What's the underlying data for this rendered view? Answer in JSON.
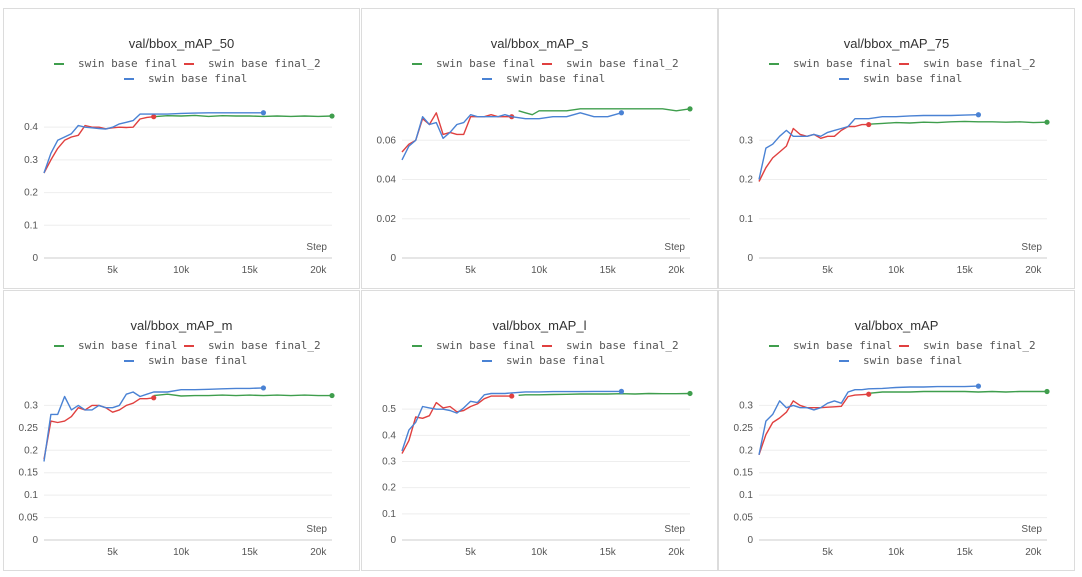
{
  "legend": [
    {
      "name": "swin base final",
      "color": "#3f9e4d"
    },
    {
      "name": "swin base final_2",
      "color": "#e0403f"
    },
    {
      "name": "swin base final",
      "color": "#4a82d4"
    }
  ],
  "chart_data": [
    {
      "type": "line",
      "title": "val/bbox_mAP_50",
      "xlabel": "Step",
      "xlim": [
        0,
        21000
      ],
      "xticks": [
        5000,
        10000,
        15000,
        20000
      ],
      "xticklabels": [
        "5k",
        "10k",
        "15k",
        "20k"
      ],
      "ylim": [
        0,
        0.48
      ],
      "yticks": [
        0,
        0.1,
        0.2,
        0.3,
        0.4
      ],
      "yticklabels": [
        "0",
        "0.1",
        "0.2",
        "0.3",
        "0.4"
      ],
      "series": [
        {
          "name": "swin base final",
          "color": "#3f9e4d",
          "x": [
            8000,
            9000,
            10000,
            11000,
            12000,
            13000,
            14000,
            15000,
            16000,
            17000,
            18000,
            19000,
            20000,
            21000
          ],
          "y": [
            0.432,
            0.435,
            0.434,
            0.436,
            0.433,
            0.435,
            0.434,
            0.434,
            0.433,
            0.434,
            0.433,
            0.434,
            0.433,
            0.434
          ]
        },
        {
          "name": "swin base final_2",
          "color": "#e0403f",
          "x": [
            0,
            500,
            1000,
            1500,
            2000,
            2500,
            3000,
            3500,
            4000,
            4500,
            5000,
            5500,
            6000,
            6500,
            7000,
            7500,
            8000
          ],
          "y": [
            0.26,
            0.3,
            0.335,
            0.36,
            0.37,
            0.375,
            0.405,
            0.4,
            0.4,
            0.395,
            0.398,
            0.4,
            0.399,
            0.4,
            0.425,
            0.43,
            0.432
          ]
        },
        {
          "name": "swin base final",
          "color": "#4a82d4",
          "x": [
            0,
            500,
            1000,
            1500,
            2000,
            2500,
            3000,
            3500,
            4000,
            4500,
            5000,
            5500,
            6000,
            6500,
            7000,
            7500,
            8000,
            9000,
            10000,
            11000,
            12000,
            13000,
            14000,
            15000,
            16000
          ],
          "y": [
            0.26,
            0.32,
            0.36,
            0.37,
            0.38,
            0.405,
            0.4,
            0.398,
            0.396,
            0.394,
            0.4,
            0.41,
            0.415,
            0.42,
            0.44,
            0.44,
            0.44,
            0.44,
            0.442,
            0.443,
            0.444,
            0.444,
            0.444,
            0.444,
            0.444
          ]
        }
      ]
    },
    {
      "type": "line",
      "title": "val/bbox_mAP_s",
      "xlabel": "Step",
      "xlim": [
        0,
        21000
      ],
      "xticks": [
        5000,
        10000,
        15000,
        20000
      ],
      "xticklabels": [
        "5k",
        "10k",
        "15k",
        "20k"
      ],
      "ylim": [
        0,
        0.08
      ],
      "yticks": [
        0,
        0.02,
        0.04,
        0.06
      ],
      "yticklabels": [
        "0",
        "0.02",
        "0.04",
        "0.06"
      ],
      "series": [
        {
          "name": "swin base final",
          "color": "#3f9e4d",
          "x": [
            8500,
            9000,
            9500,
            10000,
            11000,
            12000,
            13000,
            14000,
            15000,
            16000,
            17000,
            18000,
            19000,
            20000,
            21000
          ],
          "y": [
            0.075,
            0.074,
            0.073,
            0.075,
            0.075,
            0.075,
            0.076,
            0.076,
            0.076,
            0.076,
            0.076,
            0.076,
            0.076,
            0.075,
            0.076
          ]
        },
        {
          "name": "swin base final_2",
          "color": "#e0403f",
          "x": [
            0,
            500,
            1000,
            1500,
            2000,
            2500,
            3000,
            3500,
            4000,
            4500,
            5000,
            5500,
            6000,
            6500,
            7000,
            7500,
            8000
          ],
          "y": [
            0.054,
            0.058,
            0.06,
            0.071,
            0.068,
            0.074,
            0.063,
            0.064,
            0.063,
            0.063,
            0.072,
            0.072,
            0.072,
            0.073,
            0.072,
            0.072,
            0.072
          ]
        },
        {
          "name": "swin base final",
          "color": "#4a82d4",
          "x": [
            0,
            500,
            1000,
            1500,
            2000,
            2500,
            3000,
            3500,
            4000,
            4500,
            5000,
            5500,
            6000,
            6500,
            7000,
            7500,
            8000,
            9000,
            10000,
            11000,
            12000,
            13000,
            14000,
            15000,
            16000
          ],
          "y": [
            0.05,
            0.057,
            0.06,
            0.072,
            0.068,
            0.069,
            0.061,
            0.064,
            0.068,
            0.069,
            0.073,
            0.072,
            0.072,
            0.072,
            0.072,
            0.073,
            0.072,
            0.071,
            0.071,
            0.072,
            0.072,
            0.074,
            0.072,
            0.072,
            0.074
          ]
        }
      ]
    },
    {
      "type": "line",
      "title": "val/bbox_mAP_75",
      "xlabel": "Step",
      "xlim": [
        0,
        21000
      ],
      "xticks": [
        5000,
        10000,
        15000,
        20000
      ],
      "xticklabels": [
        "5k",
        "10k",
        "15k",
        "20k"
      ],
      "ylim": [
        0,
        0.4
      ],
      "yticks": [
        0,
        0.1,
        0.2,
        0.3
      ],
      "yticklabels": [
        "0",
        "0.1",
        "0.2",
        "0.3"
      ],
      "series": [
        {
          "name": "swin base final",
          "color": "#3f9e4d",
          "x": [
            8000,
            9000,
            10000,
            11000,
            12000,
            13000,
            14000,
            15000,
            16000,
            17000,
            18000,
            19000,
            20000,
            21000
          ],
          "y": [
            0.341,
            0.343,
            0.345,
            0.344,
            0.346,
            0.345,
            0.347,
            0.348,
            0.347,
            0.347,
            0.346,
            0.347,
            0.345,
            0.346
          ]
        },
        {
          "name": "swin base final_2",
          "color": "#e0403f",
          "x": [
            0,
            500,
            1000,
            1500,
            2000,
            2500,
            3000,
            3500,
            4000,
            4500,
            5000,
            5500,
            6000,
            6500,
            7000,
            7500,
            8000
          ],
          "y": [
            0.195,
            0.23,
            0.255,
            0.27,
            0.285,
            0.33,
            0.315,
            0.31,
            0.315,
            0.305,
            0.31,
            0.31,
            0.325,
            0.335,
            0.335,
            0.34,
            0.34
          ]
        },
        {
          "name": "swin base final",
          "color": "#4a82d4",
          "x": [
            0,
            500,
            1000,
            1500,
            2000,
            2500,
            3000,
            3500,
            4000,
            4500,
            5000,
            5500,
            6000,
            6500,
            7000,
            7500,
            8000,
            9000,
            10000,
            11000,
            12000,
            13000,
            14000,
            15000,
            16000
          ],
          "y": [
            0.2,
            0.28,
            0.29,
            0.31,
            0.325,
            0.31,
            0.31,
            0.31,
            0.315,
            0.31,
            0.32,
            0.325,
            0.33,
            0.335,
            0.355,
            0.355,
            0.355,
            0.36,
            0.36,
            0.362,
            0.363,
            0.363,
            0.363,
            0.364,
            0.365
          ]
        }
      ]
    },
    {
      "type": "line",
      "title": "val/bbox_mAP_m",
      "xlabel": "Step",
      "xlim": [
        0,
        21000
      ],
      "xticks": [
        5000,
        10000,
        15000,
        20000
      ],
      "xticklabels": [
        "5k",
        "10k",
        "15k",
        "20k"
      ],
      "ylim": [
        0,
        0.35
      ],
      "yticks": [
        0,
        0.05,
        0.1,
        0.15,
        0.2,
        0.25,
        0.3
      ],
      "yticklabels": [
        "0",
        "0.05",
        "0.1",
        "0.15",
        "0.2",
        "0.25",
        "0.3"
      ],
      "series": [
        {
          "name": "swin base final",
          "color": "#3f9e4d",
          "x": [
            8000,
            9000,
            10000,
            11000,
            12000,
            13000,
            14000,
            15000,
            16000,
            17000,
            18000,
            19000,
            20000,
            21000
          ],
          "y": [
            0.322,
            0.325,
            0.321,
            0.322,
            0.322,
            0.323,
            0.322,
            0.323,
            0.322,
            0.323,
            0.322,
            0.323,
            0.322,
            0.322
          ]
        },
        {
          "name": "swin base final_2",
          "color": "#e0403f",
          "x": [
            0,
            500,
            1000,
            1500,
            2000,
            2500,
            3000,
            3500,
            4000,
            4500,
            5000,
            5500,
            6000,
            6500,
            7000,
            7500,
            8000
          ],
          "y": [
            0.18,
            0.265,
            0.262,
            0.265,
            0.275,
            0.295,
            0.29,
            0.3,
            0.3,
            0.295,
            0.285,
            0.29,
            0.3,
            0.305,
            0.315,
            0.315,
            0.317
          ]
        },
        {
          "name": "swin base final",
          "color": "#4a82d4",
          "x": [
            0,
            500,
            1000,
            1500,
            2000,
            2500,
            3000,
            3500,
            4000,
            4500,
            5000,
            5500,
            6000,
            6500,
            7000,
            7500,
            8000,
            9000,
            10000,
            11000,
            12000,
            13000,
            14000,
            15000,
            16000
          ],
          "y": [
            0.175,
            0.28,
            0.28,
            0.32,
            0.29,
            0.3,
            0.29,
            0.29,
            0.3,
            0.295,
            0.295,
            0.3,
            0.325,
            0.33,
            0.32,
            0.325,
            0.33,
            0.33,
            0.335,
            0.335,
            0.336,
            0.337,
            0.338,
            0.338,
            0.339
          ]
        }
      ]
    },
    {
      "type": "line",
      "title": "val/bbox_mAP_l",
      "xlabel": "Step",
      "xlim": [
        0,
        21000
      ],
      "xticks": [
        5000,
        10000,
        15000,
        20000
      ],
      "xticklabels": [
        "5k",
        "10k",
        "15k",
        "20k"
      ],
      "ylim": [
        0,
        0.6
      ],
      "yticks": [
        0,
        0.1,
        0.2,
        0.3,
        0.4,
        0.5
      ],
      "yticklabels": [
        "0",
        "0.1",
        "0.2",
        "0.3",
        "0.4",
        "0.5"
      ],
      "series": [
        {
          "name": "swin base final",
          "color": "#3f9e4d",
          "x": [
            8500,
            9000,
            10000,
            11000,
            12000,
            13000,
            14000,
            15000,
            16000,
            17000,
            18000,
            19000,
            20000,
            21000
          ],
          "y": [
            0.553,
            0.555,
            0.555,
            0.556,
            0.557,
            0.558,
            0.558,
            0.558,
            0.559,
            0.558,
            0.56,
            0.559,
            0.559,
            0.56
          ]
        },
        {
          "name": "swin base final_2",
          "color": "#e0403f",
          "x": [
            0,
            500,
            1000,
            1500,
            2000,
            2500,
            3000,
            3500,
            4000,
            4500,
            5000,
            5500,
            6000,
            6500,
            7000,
            7500,
            8000
          ],
          "y": [
            0.33,
            0.38,
            0.47,
            0.465,
            0.475,
            0.525,
            0.505,
            0.51,
            0.49,
            0.495,
            0.51,
            0.52,
            0.54,
            0.55,
            0.55,
            0.55,
            0.55
          ]
        },
        {
          "name": "swin base final",
          "color": "#4a82d4",
          "x": [
            0,
            500,
            1000,
            1500,
            2000,
            2500,
            3000,
            3500,
            4000,
            4500,
            5000,
            5500,
            6000,
            6500,
            7000,
            7500,
            8000,
            9000,
            10000,
            11000,
            12000,
            13000,
            14000,
            15000,
            16000
          ],
          "y": [
            0.34,
            0.42,
            0.45,
            0.51,
            0.505,
            0.5,
            0.5,
            0.495,
            0.485,
            0.505,
            0.53,
            0.525,
            0.555,
            0.56,
            0.56,
            0.56,
            0.562,
            0.566,
            0.566,
            0.567,
            0.567,
            0.567,
            0.568,
            0.568,
            0.568
          ]
        }
      ]
    },
    {
      "type": "line",
      "title": "val/bbox_mAP",
      "xlabel": "Step",
      "xlim": [
        0,
        21000
      ],
      "xticks": [
        5000,
        10000,
        15000,
        20000
      ],
      "xticklabels": [
        "5k",
        "10k",
        "15k",
        "20k"
      ],
      "ylim": [
        0,
        0.35
      ],
      "yticks": [
        0,
        0.05,
        0.1,
        0.15,
        0.2,
        0.25,
        0.3
      ],
      "yticklabels": [
        "0",
        "0.05",
        "0.1",
        "0.15",
        "0.2",
        "0.25",
        "0.3"
      ],
      "series": [
        {
          "name": "swin base final",
          "color": "#3f9e4d",
          "x": [
            8000,
            9000,
            10000,
            11000,
            12000,
            13000,
            14000,
            15000,
            16000,
            17000,
            18000,
            19000,
            20000,
            21000
          ],
          "y": [
            0.327,
            0.33,
            0.33,
            0.33,
            0.331,
            0.331,
            0.331,
            0.331,
            0.33,
            0.331,
            0.33,
            0.331,
            0.331,
            0.331
          ]
        },
        {
          "name": "swin base final_2",
          "color": "#e0403f",
          "x": [
            0,
            500,
            1000,
            1500,
            2000,
            2500,
            3000,
            3500,
            4000,
            4500,
            5000,
            5500,
            6000,
            6500,
            7000,
            7500,
            8000
          ],
          "y": [
            0.19,
            0.235,
            0.262,
            0.272,
            0.285,
            0.31,
            0.3,
            0.295,
            0.295,
            0.295,
            0.296,
            0.297,
            0.298,
            0.32,
            0.323,
            0.324,
            0.325
          ]
        },
        {
          "name": "swin base final",
          "color": "#4a82d4",
          "x": [
            0,
            500,
            1000,
            1500,
            2000,
            2500,
            3000,
            3500,
            4000,
            4500,
            5000,
            5500,
            6000,
            6500,
            7000,
            7500,
            8000,
            9000,
            10000,
            11000,
            12000,
            13000,
            14000,
            15000,
            16000
          ],
          "y": [
            0.19,
            0.265,
            0.28,
            0.31,
            0.295,
            0.3,
            0.295,
            0.295,
            0.29,
            0.295,
            0.305,
            0.31,
            0.305,
            0.33,
            0.335,
            0.335,
            0.337,
            0.338,
            0.34,
            0.341,
            0.341,
            0.342,
            0.342,
            0.342,
            0.343
          ]
        }
      ]
    }
  ]
}
